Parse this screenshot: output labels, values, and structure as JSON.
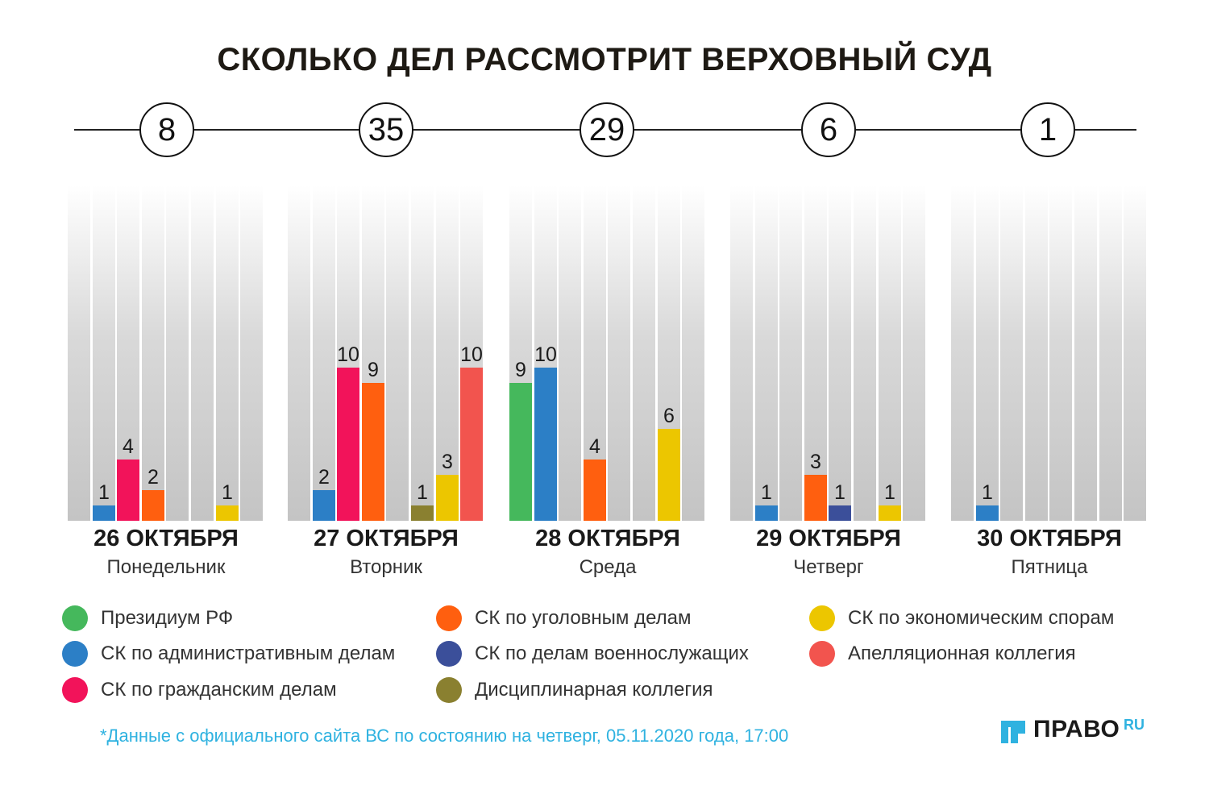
{
  "title": "СКОЛЬКО ДЕЛ РАССМОТРИТ ВЕРХОВНЫЙ СУД",
  "chart_data": {
    "type": "bar",
    "title": "СКОЛЬКО ДЕЛ РАССМОТРИТ ВЕРХОВНЫЙ СУД",
    "ylim": [
      0,
      22
    ],
    "series_names": [
      "Президиум РФ",
      "СК по административным делам",
      "СК по гражданским делам",
      "СК по уголовным делам",
      "СК по делам военнослужащих",
      "Дисциплинарная коллегия",
      "СК по экономическим спорам",
      "Апелляционная коллегия"
    ],
    "series_colors": [
      "#45b85c",
      "#2c7fc6",
      "#f2135a",
      "#ff5f0f",
      "#3b4f9a",
      "#8a8030",
      "#ecc600",
      "#f2544e"
    ],
    "days": [
      {
        "date": "26 ОКТЯБРЯ",
        "weekday": "Понедельник",
        "total": "8",
        "values": [
          0,
          1,
          4,
          2,
          0,
          0,
          1,
          0
        ]
      },
      {
        "date": "27 ОКТЯБРЯ",
        "weekday": "Вторник",
        "total": "35",
        "values": [
          0,
          2,
          10,
          9,
          0,
          1,
          3,
          10
        ]
      },
      {
        "date": "28 ОКТЯБРЯ",
        "weekday": "Среда",
        "total": "29",
        "values": [
          9,
          10,
          0,
          4,
          0,
          0,
          6,
          0
        ]
      },
      {
        "date": "29 ОКТЯБРЯ",
        "weekday": "Четверг",
        "total": "6",
        "values": [
          0,
          1,
          0,
          3,
          1,
          0,
          1,
          0
        ]
      },
      {
        "date": "30 ОКТЯБРЯ",
        "weekday": "Пятница",
        "total": "1",
        "values": [
          0,
          1,
          0,
          0,
          0,
          0,
          0,
          0
        ]
      }
    ]
  },
  "legend": [
    {
      "label": "Президиум РФ",
      "color": "#45b85c"
    },
    {
      "label": "СК по административным делам",
      "color": "#2c7fc6"
    },
    {
      "label": "СК по гражданским делам",
      "color": "#f2135a"
    },
    {
      "label": "СК по уголовным делам",
      "color": "#ff5f0f"
    },
    {
      "label": "СК по делам военнослужащих",
      "color": "#3b4f9a"
    },
    {
      "label": "Дисциплинарная коллегия",
      "color": "#8a8030"
    },
    {
      "label": "СК по экономическим спорам",
      "color": "#ecc600"
    },
    {
      "label": "Апелляционная коллегия",
      "color": "#f2544e"
    }
  ],
  "footnote": "*Данные с официального сайта ВС по состоянию на четверг, 05.11.2020 года, 17:00",
  "logo": {
    "text": "ПРАВО",
    "suffix": "RU",
    "accent": "#2fb2e0"
  }
}
